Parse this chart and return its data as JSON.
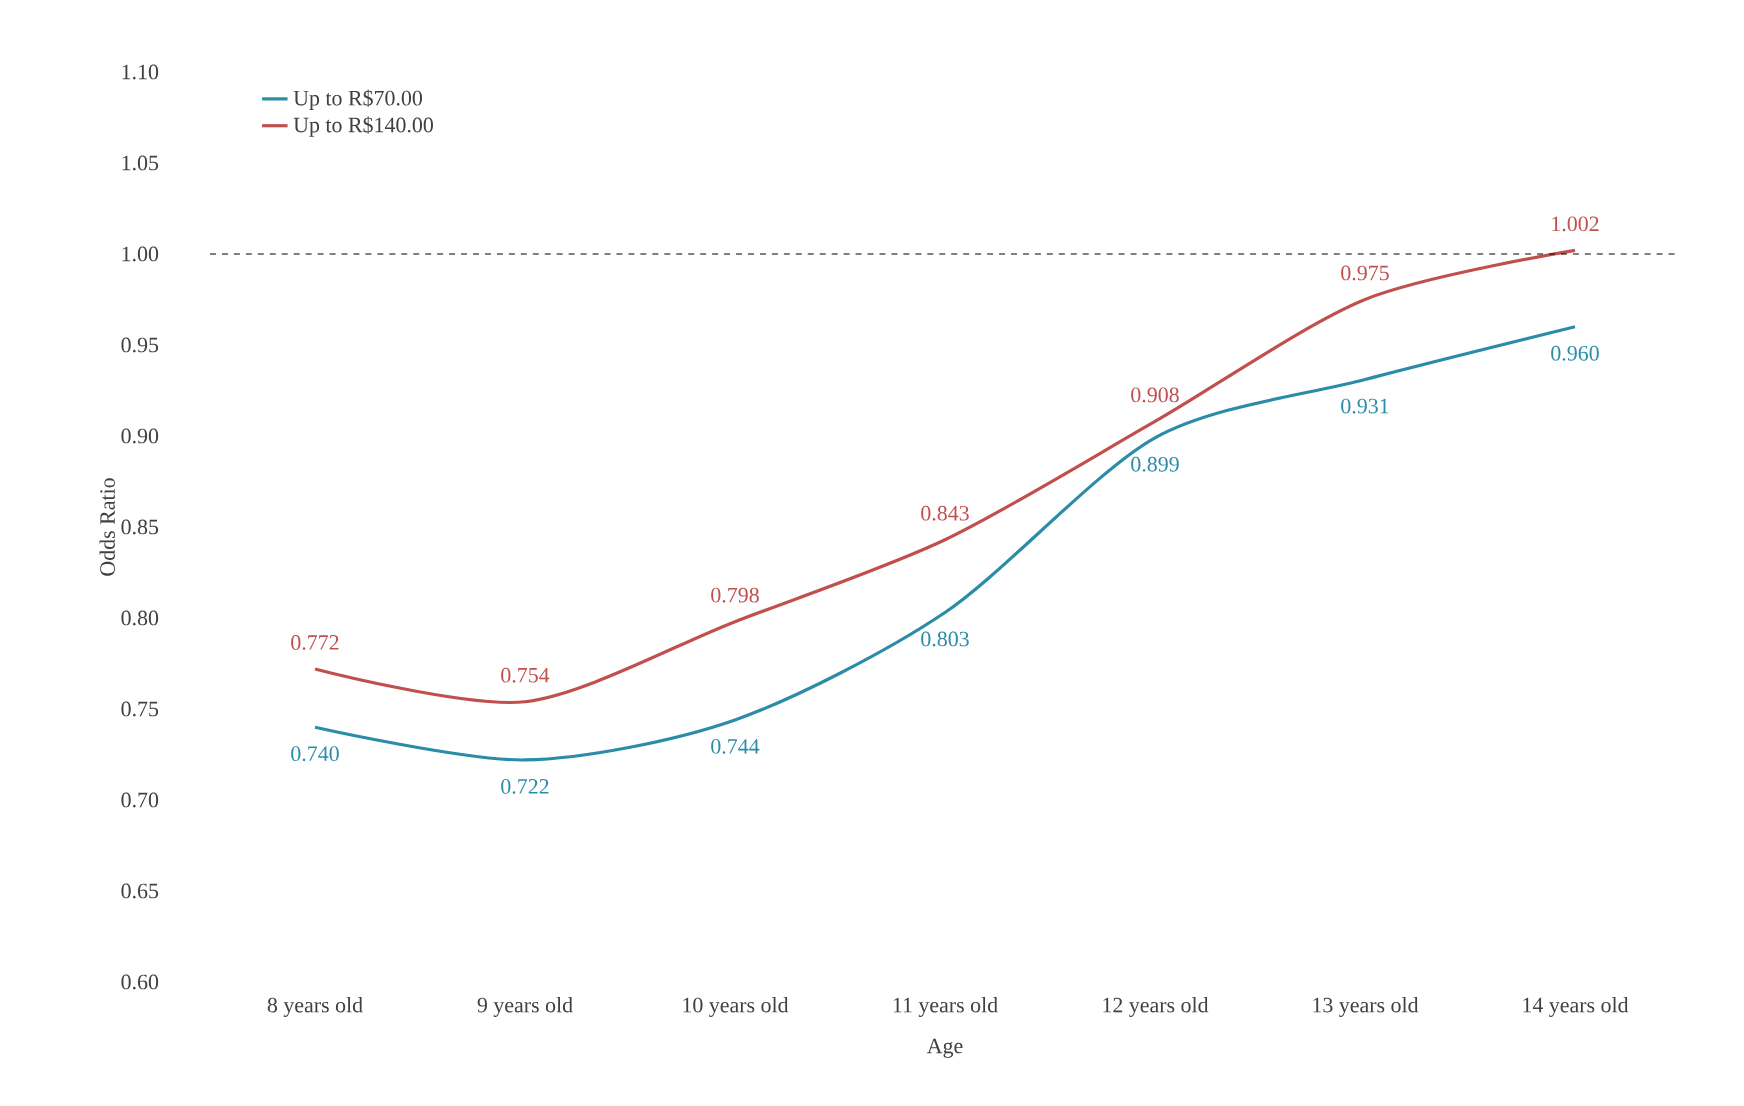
{
  "chart_data": {
    "type": "line",
    "xlabel": "Age",
    "ylabel": "Odds Ratio",
    "categories": [
      "8 years old",
      "9 years old",
      "10 years old",
      "11 years old",
      "12 years old",
      "13 years old",
      "14 years old"
    ],
    "series": [
      {
        "name": "Up to R$70.00",
        "color": "#2b8ca8",
        "values": [
          0.74,
          0.722,
          0.744,
          0.803,
          0.899,
          0.931,
          0.96
        ],
        "value_labels": [
          "0.740",
          "0.722",
          "0.744",
          "0.803",
          "0.899",
          "0.931",
          "0.960"
        ]
      },
      {
        "name": "Up to R$140.00",
        "color": "#c0504d",
        "values": [
          0.772,
          0.754,
          0.798,
          0.843,
          0.908,
          0.975,
          1.002
        ],
        "value_labels": [
          "0.772",
          "0.754",
          "0.798",
          "0.843",
          "0.908",
          "0.975",
          "1.002"
        ]
      }
    ],
    "ylim": [
      0.6,
      1.1
    ],
    "yticks": [
      {
        "value": 0.6,
        "label": "0.60"
      },
      {
        "value": 0.65,
        "label": "0.65"
      },
      {
        "value": 0.7,
        "label": "0.70"
      },
      {
        "value": 0.75,
        "label": "0.75"
      },
      {
        "value": 0.8,
        "label": "0.80"
      },
      {
        "value": 0.85,
        "label": "0.85"
      },
      {
        "value": 0.9,
        "label": "0.90"
      },
      {
        "value": 0.95,
        "label": "0.95"
      },
      {
        "value": 1.0,
        "label": "1.00"
      },
      {
        "value": 1.05,
        "label": "1.05"
      },
      {
        "value": 1.1,
        "label": "1.10"
      }
    ],
    "ref_lines": [
      {
        "axis": "y",
        "value": 1.0,
        "color": "#000000",
        "line_style": "dashed"
      }
    ],
    "legend": "top left",
    "grid": false,
    "marker": "none",
    "line_style": "solid"
  }
}
